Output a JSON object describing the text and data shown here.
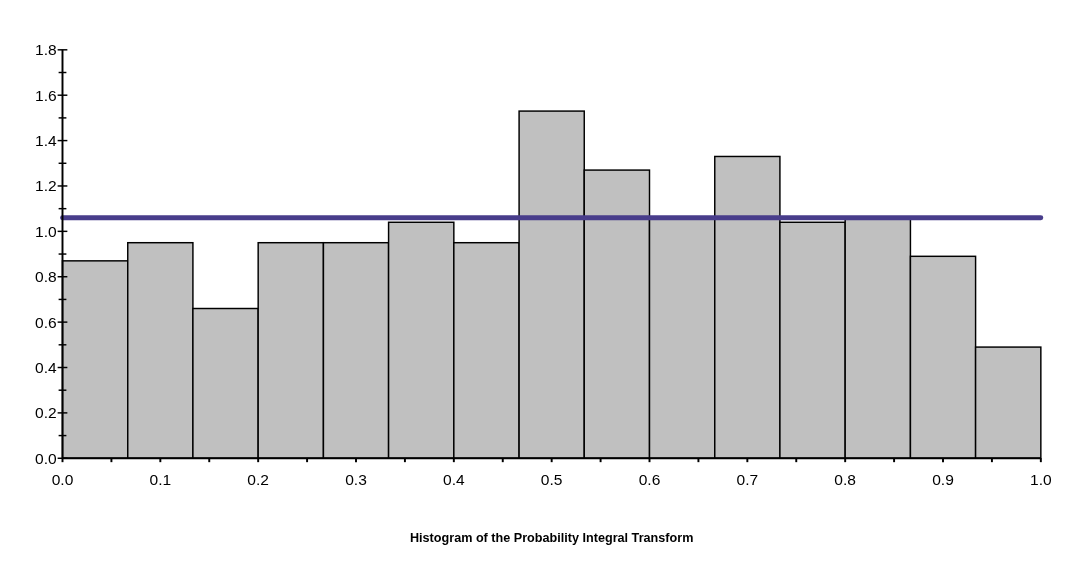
{
  "chart_data": {
    "type": "histogram",
    "xlabel": "Histogram of the Probability Integral Transform",
    "bins": [
      0,
      0.0667,
      0.1333,
      0.2,
      0.2667,
      0.3333,
      0.4,
      0.4667,
      0.5333,
      0.6,
      0.6667,
      0.7333,
      0.8,
      0.8667,
      0.9333,
      1
    ],
    "values": [
      0.87,
      0.95,
      0.66,
      0.95,
      0.95,
      1.04,
      0.95,
      1.53,
      1.27,
      1.06,
      1.33,
      1.04,
      1.06,
      0.89,
      0.49
    ],
    "color": "#c0c0c0",
    "xlim": [
      0,
      1
    ],
    "xticks": [
      {
        "value": 0,
        "label": "0.0"
      },
      {
        "value": 0.05,
        "label": null
      },
      {
        "value": 0.1,
        "label": "0.1"
      },
      {
        "value": 0.15,
        "label": null
      },
      {
        "value": 0.2,
        "label": "0.2"
      },
      {
        "value": 0.25,
        "label": null
      },
      {
        "value": 0.3,
        "label": "0.3"
      },
      {
        "value": 0.35,
        "label": null
      },
      {
        "value": 0.4,
        "label": "0.4"
      },
      {
        "value": 0.45,
        "label": null
      },
      {
        "value": 0.5,
        "label": "0.5"
      },
      {
        "value": 0.55,
        "label": null
      },
      {
        "value": 0.6,
        "label": "0.6"
      },
      {
        "value": 0.65,
        "label": null
      },
      {
        "value": 0.7,
        "label": "0.7"
      },
      {
        "value": 0.75,
        "label": null
      },
      {
        "value": 0.8,
        "label": "0.8"
      },
      {
        "value": 0.85,
        "label": null
      },
      {
        "value": 0.9,
        "label": "0.9"
      },
      {
        "value": 0.95,
        "label": null
      },
      {
        "value": 1,
        "label": "1.0"
      }
    ],
    "ylim": [
      0,
      1.8
    ],
    "yticks": [
      {
        "value": 0,
        "label": "0.0"
      },
      {
        "value": 0.1,
        "label": null
      },
      {
        "value": 0.2,
        "label": "0.2"
      },
      {
        "value": 0.3,
        "label": null
      },
      {
        "value": 0.4,
        "label": "0.4"
      },
      {
        "value": 0.5,
        "label": null
      },
      {
        "value": 0.6,
        "label": "0.6"
      },
      {
        "value": 0.7,
        "label": null
      },
      {
        "value": 0.8,
        "label": "0.8"
      },
      {
        "value": 0.9,
        "label": null
      },
      {
        "value": 1,
        "label": "1.0"
      },
      {
        "value": 1.1,
        "label": null
      },
      {
        "value": 1.2,
        "label": "1.2"
      },
      {
        "value": 1.3,
        "label": null
      },
      {
        "value": 1.4,
        "label": "1.4"
      },
      {
        "value": 1.5,
        "label": null
      },
      {
        "value": 1.6,
        "label": "1.6"
      },
      {
        "value": 1.7,
        "label": null
      },
      {
        "value": 1.8,
        "label": "1.8"
      }
    ],
    "ref_lines": [
      {
        "axis": "y",
        "value": 1.06,
        "color": "#483d8b"
      }
    ]
  }
}
